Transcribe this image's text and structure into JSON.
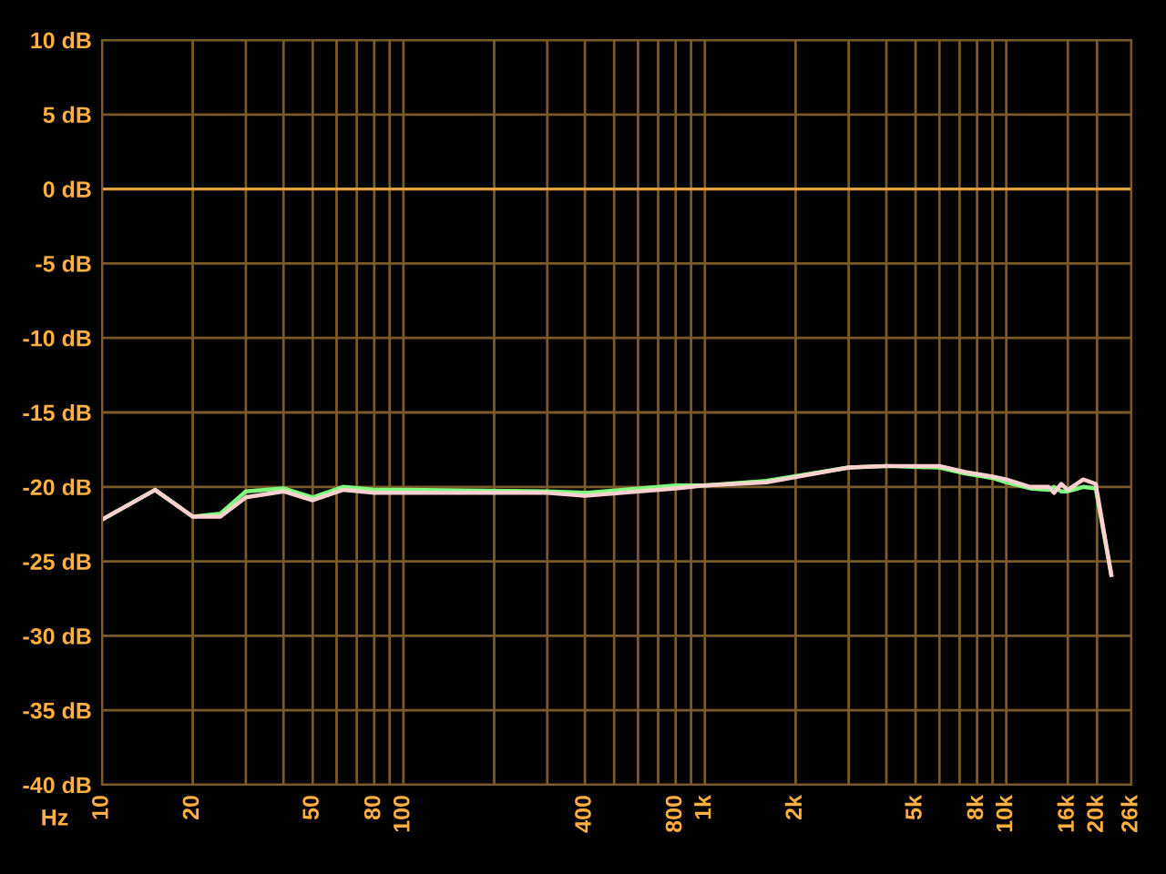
{
  "chart_data": {
    "type": "line",
    "xlabel": "Hz",
    "log": "x",
    "x": [
      10,
      15,
      20,
      24.7,
      30,
      40,
      50,
      63,
      80,
      100,
      300,
      400,
      800,
      1000,
      1600,
      3000,
      4000,
      6000,
      7300,
      9000,
      10000,
      12000,
      13800,
      14400,
      15200,
      16000,
      18000,
      19800,
      22300
    ],
    "series": [
      {
        "color": "#80ff80",
        "values": [
          -22.2,
          -20.2,
          -22.0,
          -21.8,
          -20.3,
          -20.1,
          -20.7,
          -20.0,
          -20.2,
          -20.2,
          -20.3,
          -20.4,
          -19.9,
          -19.9,
          -19.6,
          -18.7,
          -18.6,
          -18.7,
          -19.1,
          -19.4,
          -19.7,
          -20.1,
          -20.2,
          -20.0,
          -20.3,
          -20.3,
          -20.0,
          -20.1,
          -25.9
        ]
      },
      {
        "color": "#ffd0d0",
        "values": [
          -22.2,
          -20.2,
          -22.0,
          -22.0,
          -20.7,
          -20.3,
          -20.9,
          -20.2,
          -20.4,
          -20.4,
          -20.4,
          -20.6,
          -20.1,
          -19.9,
          -19.7,
          -18.7,
          -18.6,
          -18.6,
          -19.0,
          -19.3,
          -19.5,
          -20.0,
          -20.0,
          -20.4,
          -19.8,
          -20.2,
          -19.5,
          -19.8,
          -25.9
        ]
      }
    ],
    "xlim": [
      10,
      26000
    ],
    "ylim": [
      -40,
      10
    ],
    "xticks": [
      10,
      20,
      {
        "value": 30,
        "label": null
      },
      {
        "value": 40,
        "label": null
      },
      50,
      {
        "value": 60,
        "label": null
      },
      {
        "value": 70,
        "label": null
      },
      80,
      {
        "value": 90,
        "label": null
      },
      100,
      {
        "value": 200,
        "label": null
      },
      {
        "value": 300,
        "label": null
      },
      400,
      {
        "value": 500,
        "label": null
      },
      {
        "value": 600,
        "label": null
      },
      {
        "value": 700,
        "label": null
      },
      800,
      {
        "value": 900,
        "label": null
      },
      {
        "value": 1000,
        "label": "1k"
      },
      {
        "value": 2000,
        "label": "2k"
      },
      {
        "value": 3000,
        "label": null
      },
      {
        "value": 4000,
        "label": null
      },
      {
        "value": 5000,
        "label": "5k"
      },
      {
        "value": 6000,
        "label": null
      },
      {
        "value": 7000,
        "label": null
      },
      {
        "value": 8000,
        "label": "8k"
      },
      {
        "value": 9000,
        "label": null
      },
      {
        "value": 10000,
        "label": "10k"
      },
      {
        "value": 16000,
        "label": "16k"
      },
      {
        "value": 20000,
        "label": "20k"
      },
      {
        "value": 26000,
        "label": "26k"
      }
    ],
    "yticks": [
      {
        "value": 10,
        "label": "10 dB"
      },
      {
        "value": 5,
        "label": "5 dB"
      },
      {
        "value": 0,
        "label": "0 dB"
      },
      {
        "value": -5,
        "label": "-5 dB"
      },
      {
        "value": -10,
        "label": "-10 dB"
      },
      {
        "value": -15,
        "label": "-15 dB"
      },
      {
        "value": -20,
        "label": "-20 dB"
      },
      {
        "value": -25,
        "label": "-25 dB"
      },
      {
        "value": -30,
        "label": "-30 dB"
      },
      {
        "value": -35,
        "label": "-35 dB"
      },
      {
        "value": -40,
        "label": "-40 dB"
      }
    ],
    "grid": true,
    "ref_lines": [
      {
        "axis": "y",
        "value": 0,
        "color": "#e0a040"
      }
    ]
  }
}
